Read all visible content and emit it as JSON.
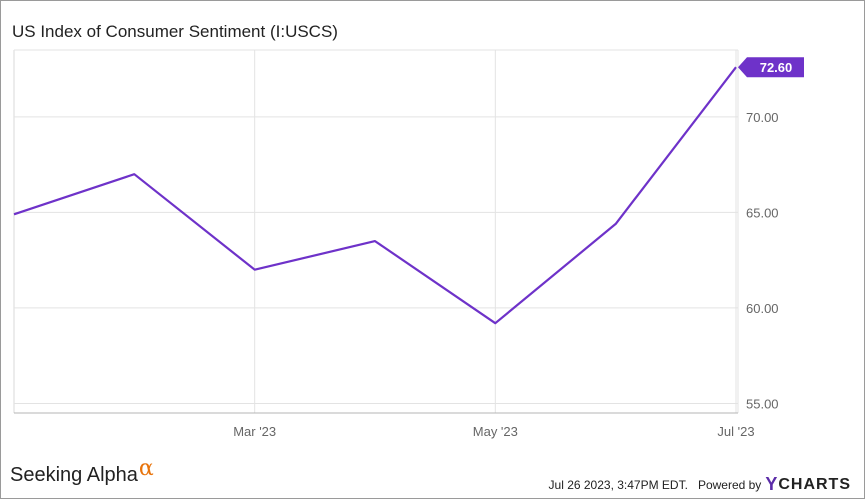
{
  "header": {
    "title": "US Index of Consumer Sentiment (I:USCS)"
  },
  "branding": {
    "logo_text": "Seeking Alpha",
    "logo_symbol": "α",
    "accent_color": "#e8740c"
  },
  "footer": {
    "timestamp": "Jul 26 2023, 3:47PM EDT.",
    "powered_by": "Powered by",
    "brand_mark": "Y",
    "brand_name": "CHARTS"
  },
  "chart_data": {
    "type": "line",
    "title": "US Index of Consumer Sentiment (I:USCS)",
    "x": [
      "2023-01",
      "2023-02",
      "2023-03",
      "2023-04",
      "2023-05",
      "2023-06",
      "2023-07"
    ],
    "x_tick_labels": [
      "Mar '23",
      "May '23",
      "Jul '23"
    ],
    "x_tick_values": [
      "2023-03",
      "2023-05",
      "2023-07"
    ],
    "series": [
      {
        "values": [
          64.9,
          67.0,
          62.0,
          63.5,
          59.2,
          64.4,
          72.6
        ],
        "color": "#6e32c9"
      }
    ],
    "ylim": [
      54.5,
      73.5
    ],
    "y_ticks": [
      55,
      60,
      65,
      70
    ],
    "y_tick_labels": [
      "55.00",
      "60.00",
      "65.00",
      "70.00"
    ],
    "last_value_label": "72.60",
    "y_axis_side": "right",
    "grid": true
  }
}
